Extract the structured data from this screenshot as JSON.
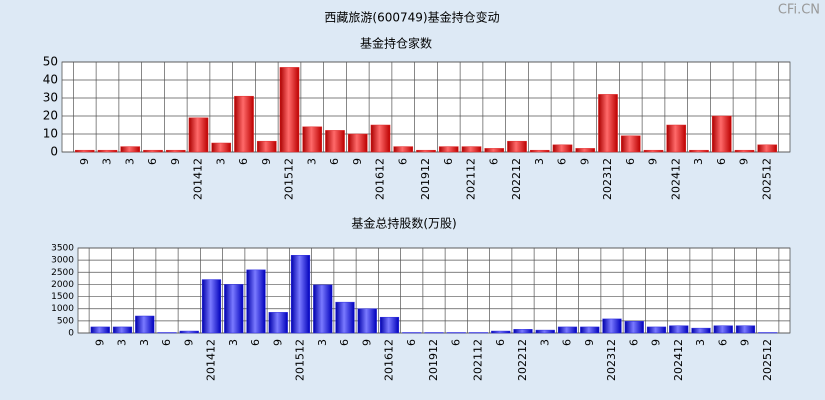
{
  "title": "西藏旅游(600749)基金持仓变动",
  "watermark": "CFi.CN",
  "chart_data": [
    {
      "type": "bar",
      "title": "基金持仓家数",
      "categories": [
        "9",
        "3",
        "3",
        "6",
        "9",
        "201412",
        "3",
        "6",
        "9",
        "201512",
        "3",
        "6",
        "9",
        "201612",
        "6",
        "201912",
        "6",
        "202112",
        "6",
        "202212",
        "3",
        "6",
        "9",
        "202312",
        "6",
        "9",
        "202412",
        "3",
        "6",
        "9",
        "202512"
      ],
      "values": [
        1,
        1,
        3,
        1,
        1,
        19,
        5,
        31,
        6,
        47,
        14,
        12,
        10,
        15,
        3,
        1,
        3,
        3,
        2,
        6,
        1,
        4,
        2,
        32,
        9,
        1,
        15,
        1,
        20,
        1,
        4
      ],
      "color": "#e02a2a",
      "ylim": [
        0,
        50
      ],
      "yticks": [
        0,
        10,
        20,
        30,
        40,
        50
      ],
      "grid": true
    },
    {
      "type": "bar",
      "title": "基金总持股数(万股)",
      "categories": [
        "9",
        "3",
        "3",
        "6",
        "9",
        "201412",
        "3",
        "6",
        "9",
        "201512",
        "3",
        "6",
        "9",
        "201612",
        "6",
        "201912",
        "6",
        "202112",
        "6",
        "202212",
        "3",
        "6",
        "9",
        "202312",
        "6",
        "9",
        "202412",
        "3",
        "6",
        "9",
        "202512"
      ],
      "values": [
        250,
        250,
        700,
        20,
        80,
        2200,
        2000,
        2600,
        850,
        3200,
        1980,
        1270,
        1000,
        650,
        20,
        20,
        20,
        20,
        80,
        150,
        120,
        250,
        250,
        580,
        480,
        250,
        300,
        200,
        300,
        300,
        20
      ],
      "color": "#2a2ae0",
      "ylim": [
        0,
        3500
      ],
      "yticks": [
        0,
        500,
        1000,
        1500,
        2000,
        2500,
        3000,
        3500
      ],
      "grid": true
    }
  ]
}
